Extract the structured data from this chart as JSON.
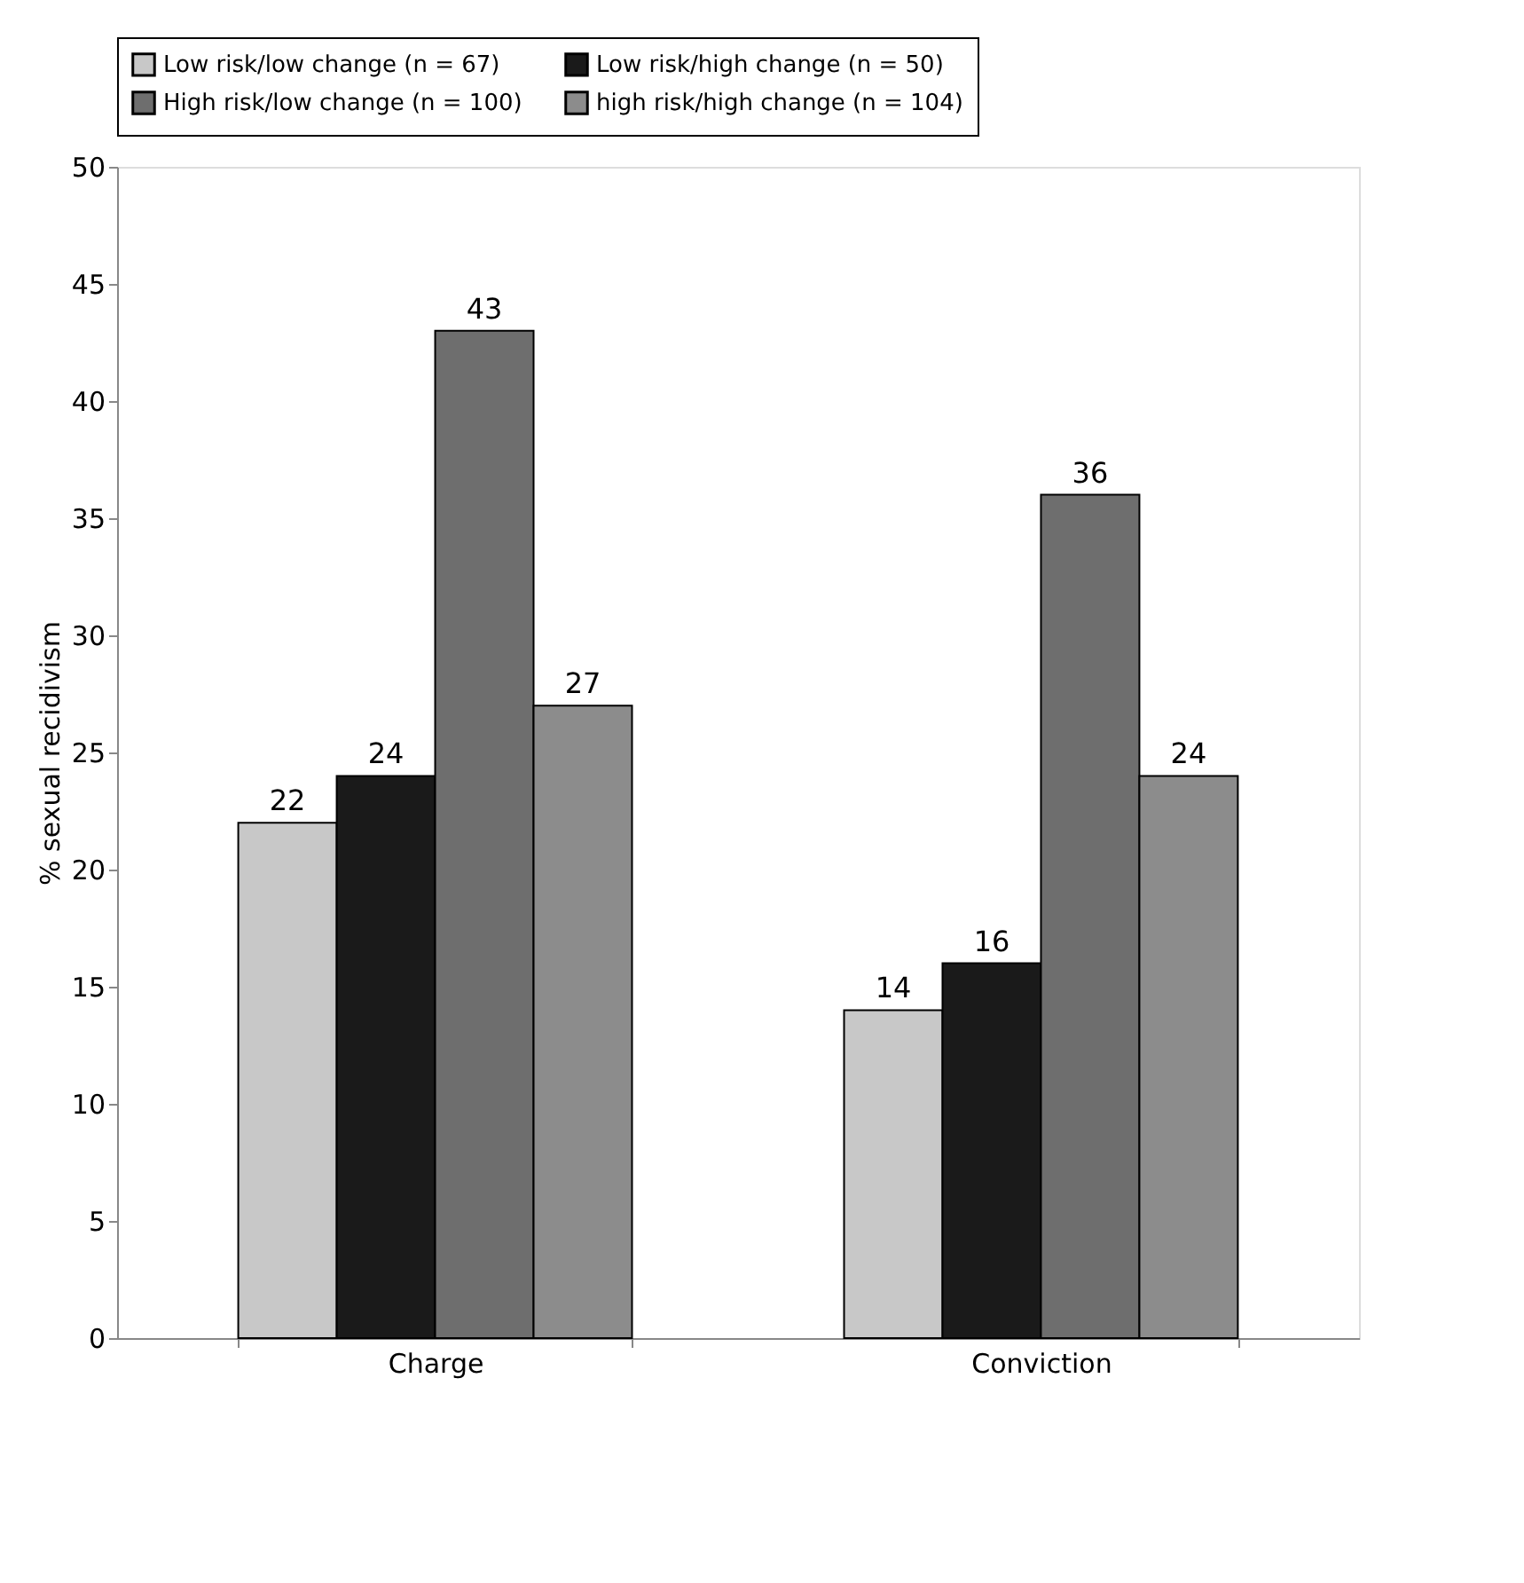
{
  "chart_data": {
    "type": "bar",
    "ylabel": "% sexual recidivism",
    "categories": [
      "Charge",
      "Conviction"
    ],
    "series": [
      {
        "name": "Low risk/low change (n = 67)",
        "color": "#c8c8c8",
        "values": [
          22,
          14
        ]
      },
      {
        "name": "Low risk/high change (n = 50)",
        "color": "#1a1a1a",
        "values": [
          24,
          16
        ]
      },
      {
        "name": "High risk/low change (n = 100)",
        "color": "#6e6e6e",
        "values": [
          43,
          36
        ]
      },
      {
        "name": "high risk/high change (n = 104)",
        "color": "#8c8c8c",
        "values": [
          27,
          24
        ]
      }
    ],
    "ylim": [
      0,
      50
    ],
    "yticks": [
      0,
      5,
      10,
      15,
      20,
      25,
      30,
      35,
      40,
      45,
      50
    ],
    "grid": false,
    "legend": "top",
    "data_labels": true
  }
}
